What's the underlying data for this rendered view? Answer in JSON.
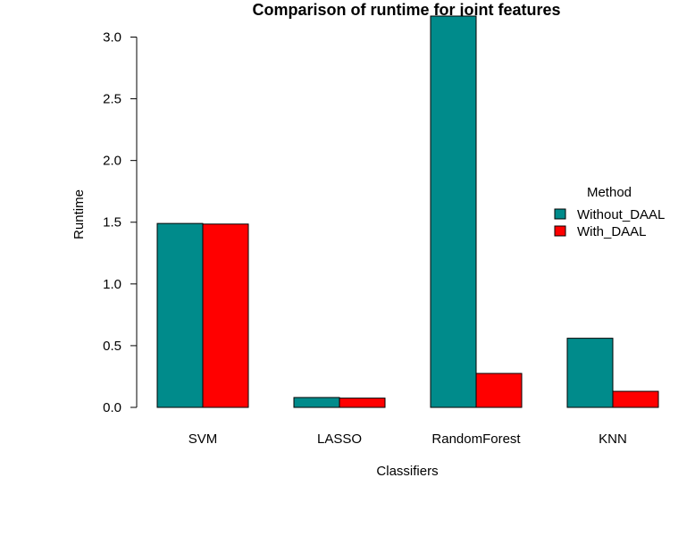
{
  "chart_data": {
    "type": "bar",
    "title": "Comparison of runtime for joint features",
    "xlabel": "Classifiers",
    "ylabel": "Runtime",
    "categories": [
      "SVM",
      "LASSO",
      "RandomForest",
      "KNN"
    ],
    "series": [
      {
        "name": "Without_DAAL",
        "color": "#008b8b",
        "values": [
          1.49,
          0.08,
          3.17,
          0.56
        ]
      },
      {
        "name": "With_DAAL",
        "color": "#ff0000",
        "values": [
          1.485,
          0.075,
          0.275,
          0.13
        ]
      }
    ],
    "ylim": [
      0,
      3.17
    ],
    "yticks": [
      0.0,
      0.5,
      1.0,
      1.5,
      2.0,
      2.5,
      3.0
    ],
    "ytick_labels": [
      "0.0",
      "0.5",
      "1.0",
      "1.5",
      "2.0",
      "2.5",
      "3.0"
    ],
    "grid": false,
    "legend": {
      "title": "Method",
      "placement": "right"
    }
  }
}
